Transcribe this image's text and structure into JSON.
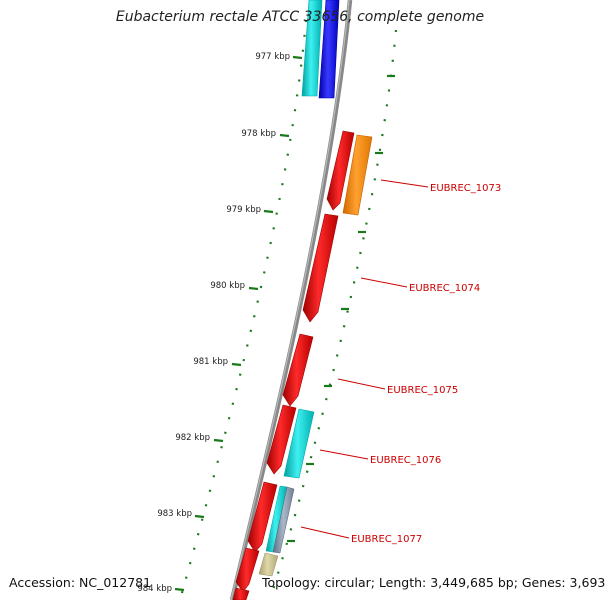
{
  "title": "Eubacterium rectale ATCC 33656, complete genome",
  "footer": {
    "accession": "Accession: NC_012781",
    "summary": "Topology: circular; Length: 3,449,685 bp; Genes: 3,693"
  },
  "ruler": {
    "labels": [
      "977 kbp",
      "978 kbp",
      "979 kbp",
      "980 kbp",
      "981 kbp",
      "982 kbp",
      "983 kbp",
      "984 kbp"
    ],
    "tick_color": "#1a7a1a"
  },
  "genes": [
    {
      "label": "EUBREC_1073",
      "color": "#cc0000"
    },
    {
      "label": "EUBREC_1074",
      "color": "#cc0000"
    },
    {
      "label": "EUBREC_1075",
      "color": "#cc0000"
    },
    {
      "label": "EUBREC_1076",
      "color": "#cc0000"
    },
    {
      "label": "EUBREC_1077",
      "color": "#cc0000"
    }
  ],
  "feature_colors": {
    "cds_forward": "#ff0000",
    "cds_cyan": "#00cccc",
    "cds_blue": "#0000ff",
    "cds_orange": "#ff8800",
    "cds_khaki": "#c8c08a",
    "backbone": "#888888"
  }
}
